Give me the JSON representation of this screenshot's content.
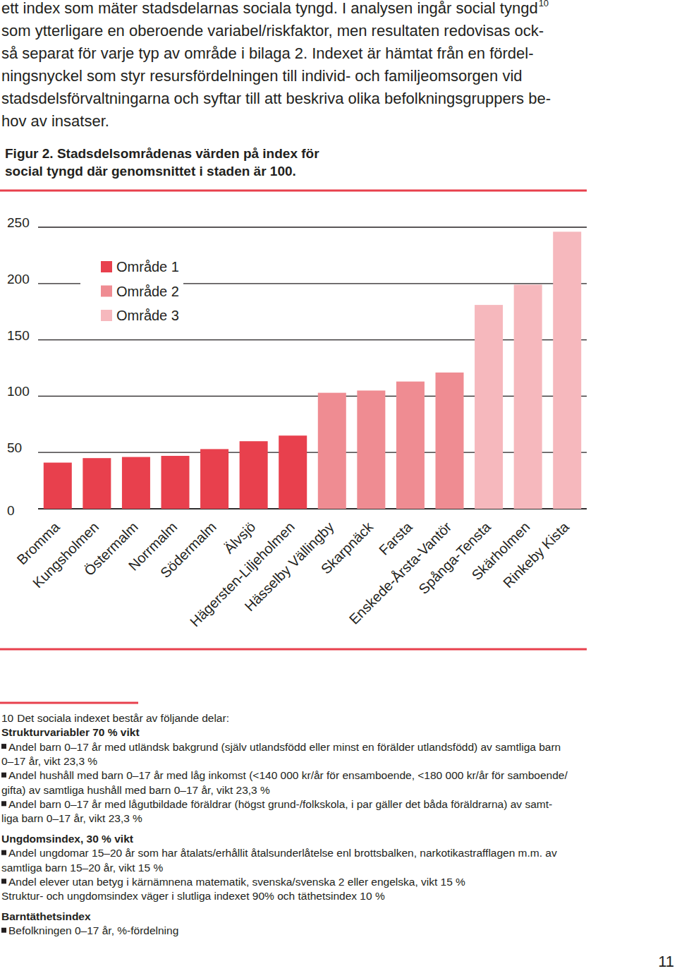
{
  "intro": {
    "lines": [
      "ett index som mäter stadsdelarnas sociala tyngd. I analysen ingår social tyngd",
      "som ytterligare en oberoende variabel/riskfaktor, men resultaten redovisas ock-",
      "så separat för varje typ av område i bilaga 2. Indexet är hämtat från en fördel-",
      "ningsnyckel som styr resursfördelningen till individ- och familjeomsorgen vid",
      "stadsdelsförvaltningarna och syftar till att beskriva olika befolkningsgruppers be-",
      "hov av insatser."
    ],
    "footnote_ref": "10"
  },
  "chart_data": {
    "type": "bar",
    "title": [
      "Figur 2. Stadsdelsområdenas värden på index för",
      "social tyngd där genomsnittet i staden är 100."
    ],
    "categories": [
      "Bromma",
      "Kungsholmen",
      "Östermalm",
      "Norrmalm",
      "Södermalm",
      "Älvsjö",
      "Hägersten-Liljeholmen",
      "Hässelby Vällingby",
      "Skarpnäck",
      "Farsta",
      "Enskede-Årsta-Vantör",
      "Spånga-Tensta",
      "Skärholmen",
      "Rinkeby Kista"
    ],
    "series": [
      {
        "name": "Område 1",
        "color": "#e8404d",
        "values": [
          41,
          45,
          46,
          47,
          53,
          60,
          65,
          null,
          null,
          null,
          null,
          null,
          null,
          null
        ]
      },
      {
        "name": "Område 2",
        "color": "#ef8c92",
        "values": [
          null,
          null,
          null,
          null,
          null,
          null,
          null,
          103,
          105,
          113,
          121,
          null,
          null,
          null
        ]
      },
      {
        "name": "Område 3",
        "color": "#f6b8bd",
        "values": [
          null,
          null,
          null,
          null,
          null,
          null,
          null,
          null,
          null,
          null,
          null,
          181,
          199,
          246
        ]
      }
    ],
    "stacked": true,
    "ylim": [
      0,
      250
    ],
    "yticks": [
      0,
      50,
      100,
      150,
      200,
      250
    ],
    "grid": true,
    "legend": "upper left"
  },
  "footnote": {
    "number": "10",
    "intro": "Det sociala indexet består av följande delar:",
    "sections": [
      {
        "heading": "Strukturvariabler 70 % vikt",
        "items": [
          [
            "Andel barn 0–17 år med utländsk bakgrund (själv utlandsfödd eller minst en förälder utlandsfödd) av samtliga barn",
            "0–17 år, vikt 23,3 %"
          ],
          [
            "Andel hushåll med barn 0–17 år med låg inkomst (<140 000 kr/år för ensamboende, <180 000 kr/år för samboende/",
            "gifta) av samtliga hushåll med barn 0–17 år, vikt 23,3 %"
          ],
          [
            "Andel barn 0–17 år med lågutbildade föräldrar (högst grund-/folkskola, i par gäller det båda föräldrarna) av samt-",
            "liga barn 0–17 år, vikt 23,3 %"
          ]
        ]
      },
      {
        "heading": "Ungdomsindex, 30 % vikt",
        "items": [
          [
            "Andel ungdomar 15–20 år som har åtalats/erhållit åtalsunderlåtelse enl brottsbalken, narkotikastrafflagen m.m. av",
            "samtliga barn 15–20 år, vikt 15 %"
          ],
          [
            "Andel elever utan betyg i kärnämnena matematik, svenska/svenska 2 eller engelska, vikt 15 %"
          ]
        ],
        "note": "Struktur- och ungdomsindex väger i slutliga indexet 90% och täthetsindex 10 %"
      },
      {
        "heading": "Barntäthetsindex",
        "items": [
          [
            "Befolkningen 0–17 år, %-fördelning"
          ]
        ]
      }
    ]
  },
  "page_number": "11"
}
